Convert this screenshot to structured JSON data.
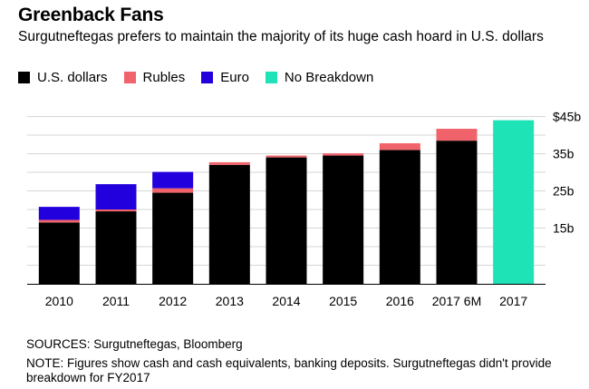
{
  "chart_data": {
    "type": "bar",
    "stacked": true,
    "title": "Greenback Fans",
    "subtitle": "Surgutneftegas prefers to maintain the majority of its huge cash hoard in U.S. dollars",
    "categories": [
      "2010",
      "2011",
      "2012",
      "2013",
      "2014",
      "2015",
      "2016",
      "2017 6M",
      "2017"
    ],
    "series": [
      {
        "name": "U.S. dollars",
        "color": "#000000",
        "values": [
          16.5,
          19.5,
          24.5,
          32,
          34,
          34.5,
          36,
          38.5,
          0
        ]
      },
      {
        "name": "Rubles",
        "color": "#f0636a",
        "values": [
          0.7,
          0.5,
          1.2,
          0.7,
          0.5,
          0.6,
          1.8,
          3.2,
          0
        ]
      },
      {
        "name": "Euro",
        "color": "#2200dd",
        "values": [
          3.5,
          6.8,
          4.4,
          0,
          0,
          0,
          0,
          0,
          0
        ]
      },
      {
        "name": "No Breakdown",
        "color": "#1de3b6",
        "values": [
          0,
          0,
          0,
          0,
          0,
          0,
          0,
          0,
          44
        ]
      }
    ],
    "ylim": [
      0,
      45
    ],
    "yticks": [
      15,
      25,
      35,
      45
    ],
    "ytick_labels": [
      "15b",
      "25b",
      "35b",
      "$45b"
    ],
    "grid": true,
    "legend_position": "top-left"
  },
  "footer": {
    "sources": "SOURCES: Surgutneftegas, Bloomberg",
    "note": "NOTE: Figures show cash and cash equivalents, banking deposits. Surgutneftegas didn't provide breakdown for FY2017"
  }
}
